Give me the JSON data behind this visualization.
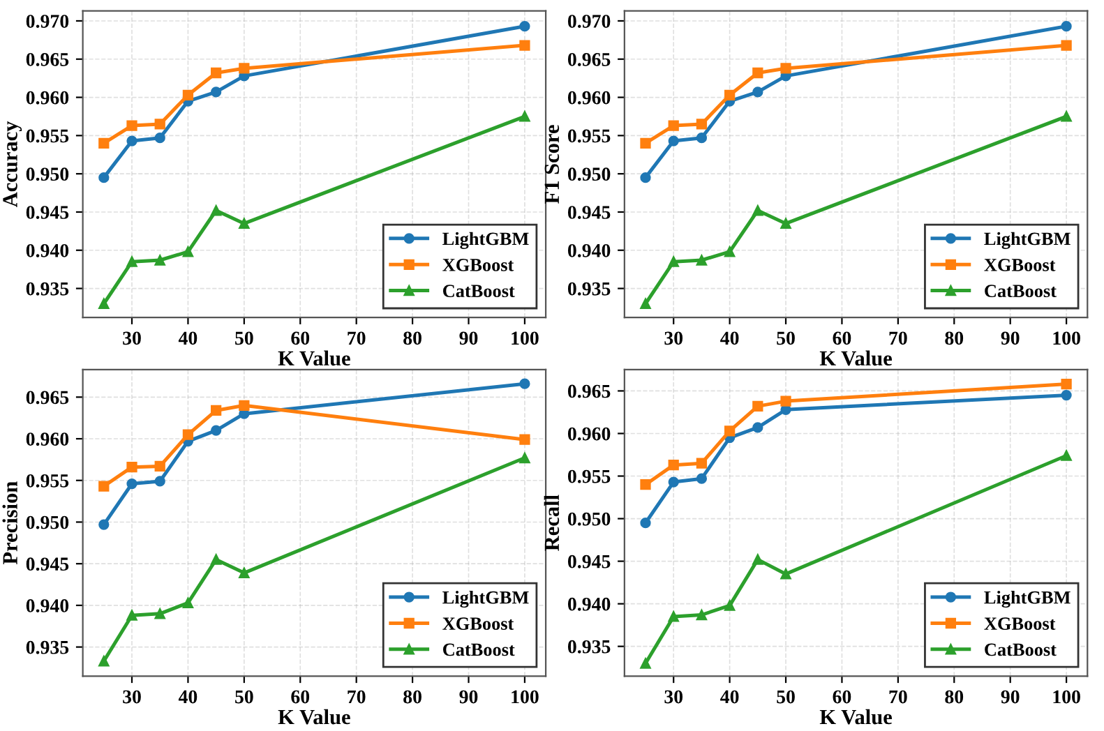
{
  "chart_data": [
    {
      "type": "line",
      "xlabel": "K Value",
      "ylabel": "Accuracy",
      "x": [
        25,
        30,
        35,
        40,
        45,
        50,
        100
      ],
      "xlim": [
        21.25,
        103.75
      ],
      "xticks": [
        30,
        40,
        50,
        60,
        70,
        80,
        90,
        100
      ],
      "ylim": [
        0.9312,
        0.9713
      ],
      "yticks": [
        {
          "value": 0.935,
          "label": "0.935"
        },
        {
          "value": 0.94,
          "label": "0.940"
        },
        {
          "value": 0.945,
          "label": "0.945"
        },
        {
          "value": 0.95,
          "label": "0.950"
        },
        {
          "value": 0.955,
          "label": "0.955"
        },
        {
          "value": 0.96,
          "label": "0.960"
        },
        {
          "value": 0.965,
          "label": "0.965"
        },
        {
          "value": 0.97,
          "label": "0.970"
        }
      ],
      "grid": true,
      "legend": "bottom right",
      "series": [
        {
          "name": "LightGBM",
          "color": "#1f77b4",
          "marker": "circle",
          "values": [
            0.9495,
            0.9543,
            0.9547,
            0.9595,
            0.9607,
            0.9628,
            0.9693
          ]
        },
        {
          "name": "XGBoost",
          "color": "#ff7f0e",
          "marker": "square",
          "values": [
            0.954,
            0.9563,
            0.9565,
            0.9603,
            0.9632,
            0.9638,
            0.9668
          ]
        },
        {
          "name": "CatBoost",
          "color": "#2ca02c",
          "marker": "triangle",
          "values": [
            0.933,
            0.9385,
            0.9387,
            0.9398,
            0.9452,
            0.9435,
            0.9575
          ]
        }
      ]
    },
    {
      "type": "line",
      "xlabel": "K Value",
      "ylabel": "F1 Score",
      "x": [
        25,
        30,
        35,
        40,
        45,
        50,
        100
      ],
      "xlim": [
        21.25,
        103.75
      ],
      "xticks": [
        30,
        40,
        50,
        60,
        70,
        80,
        90,
        100
      ],
      "ylim": [
        0.9312,
        0.9713
      ],
      "yticks": [
        {
          "value": 0.935,
          "label": "0.935"
        },
        {
          "value": 0.94,
          "label": "0.940"
        },
        {
          "value": 0.945,
          "label": "0.945"
        },
        {
          "value": 0.95,
          "label": "0.950"
        },
        {
          "value": 0.955,
          "label": "0.955"
        },
        {
          "value": 0.96,
          "label": "0.960"
        },
        {
          "value": 0.965,
          "label": "0.965"
        },
        {
          "value": 0.97,
          "label": "0.970"
        }
      ],
      "grid": true,
      "legend": "bottom right",
      "series": [
        {
          "name": "LightGBM",
          "color": "#1f77b4",
          "marker": "circle",
          "values": [
            0.9495,
            0.9543,
            0.9547,
            0.9595,
            0.9607,
            0.9628,
            0.9693
          ]
        },
        {
          "name": "XGBoost",
          "color": "#ff7f0e",
          "marker": "square",
          "values": [
            0.954,
            0.9563,
            0.9565,
            0.9603,
            0.9632,
            0.9638,
            0.9668
          ]
        },
        {
          "name": "CatBoost",
          "color": "#2ca02c",
          "marker": "triangle",
          "values": [
            0.933,
            0.9385,
            0.9387,
            0.9398,
            0.9452,
            0.9435,
            0.9575
          ]
        }
      ]
    },
    {
      "type": "line",
      "xlabel": "K Value",
      "ylabel": "Precision",
      "x": [
        25,
        30,
        35,
        40,
        45,
        50,
        100
      ],
      "xlim": [
        21.25,
        103.75
      ],
      "xticks": [
        30,
        40,
        50,
        60,
        70,
        80,
        90,
        100
      ],
      "ylim": [
        0.9315,
        0.9683
      ],
      "yticks": [
        {
          "value": 0.935,
          "label": "0.935"
        },
        {
          "value": 0.94,
          "label": "0.940"
        },
        {
          "value": 0.945,
          "label": "0.945"
        },
        {
          "value": 0.95,
          "label": "0.950"
        },
        {
          "value": 0.955,
          "label": "0.955"
        },
        {
          "value": 0.96,
          "label": "0.960"
        },
        {
          "value": 0.965,
          "label": "0.965"
        }
      ],
      "grid": true,
      "legend": "bottom right",
      "series": [
        {
          "name": "LightGBM",
          "color": "#1f77b4",
          "marker": "circle",
          "values": [
            0.9497,
            0.9546,
            0.9549,
            0.9597,
            0.961,
            0.963,
            0.9666
          ]
        },
        {
          "name": "XGBoost",
          "color": "#ff7f0e",
          "marker": "square",
          "values": [
            0.9543,
            0.9566,
            0.9567,
            0.9605,
            0.9634,
            0.964,
            0.9599
          ]
        },
        {
          "name": "CatBoost",
          "color": "#2ca02c",
          "marker": "triangle",
          "values": [
            0.9333,
            0.9388,
            0.939,
            0.9403,
            0.9455,
            0.9439,
            0.9577
          ]
        }
      ]
    },
    {
      "type": "line",
      "xlabel": "K Value",
      "ylabel": "Recall",
      "x": [
        25,
        30,
        35,
        40,
        45,
        50,
        100
      ],
      "xlim": [
        21.25,
        103.75
      ],
      "xticks": [
        30,
        40,
        50,
        60,
        70,
        80,
        90,
        100
      ],
      "ylim": [
        0.9315,
        0.9675
      ],
      "yticks": [
        {
          "value": 0.935,
          "label": "0.935"
        },
        {
          "value": 0.94,
          "label": "0.940"
        },
        {
          "value": 0.945,
          "label": "0.945"
        },
        {
          "value": 0.95,
          "label": "0.950"
        },
        {
          "value": 0.955,
          "label": "0.955"
        },
        {
          "value": 0.96,
          "label": "0.960"
        },
        {
          "value": 0.965,
          "label": "0.965"
        }
      ],
      "grid": true,
      "legend": "bottom right",
      "series": [
        {
          "name": "LightGBM",
          "color": "#1f77b4",
          "marker": "circle",
          "values": [
            0.9495,
            0.9543,
            0.9547,
            0.9595,
            0.9607,
            0.9628,
            0.9645
          ]
        },
        {
          "name": "XGBoost",
          "color": "#ff7f0e",
          "marker": "square",
          "values": [
            0.954,
            0.9563,
            0.9565,
            0.9603,
            0.9632,
            0.9638,
            0.9658
          ]
        },
        {
          "name": "CatBoost",
          "color": "#2ca02c",
          "marker": "triangle",
          "values": [
            0.933,
            0.9385,
            0.9387,
            0.9398,
            0.9452,
            0.9435,
            0.9574
          ]
        }
      ]
    }
  ]
}
